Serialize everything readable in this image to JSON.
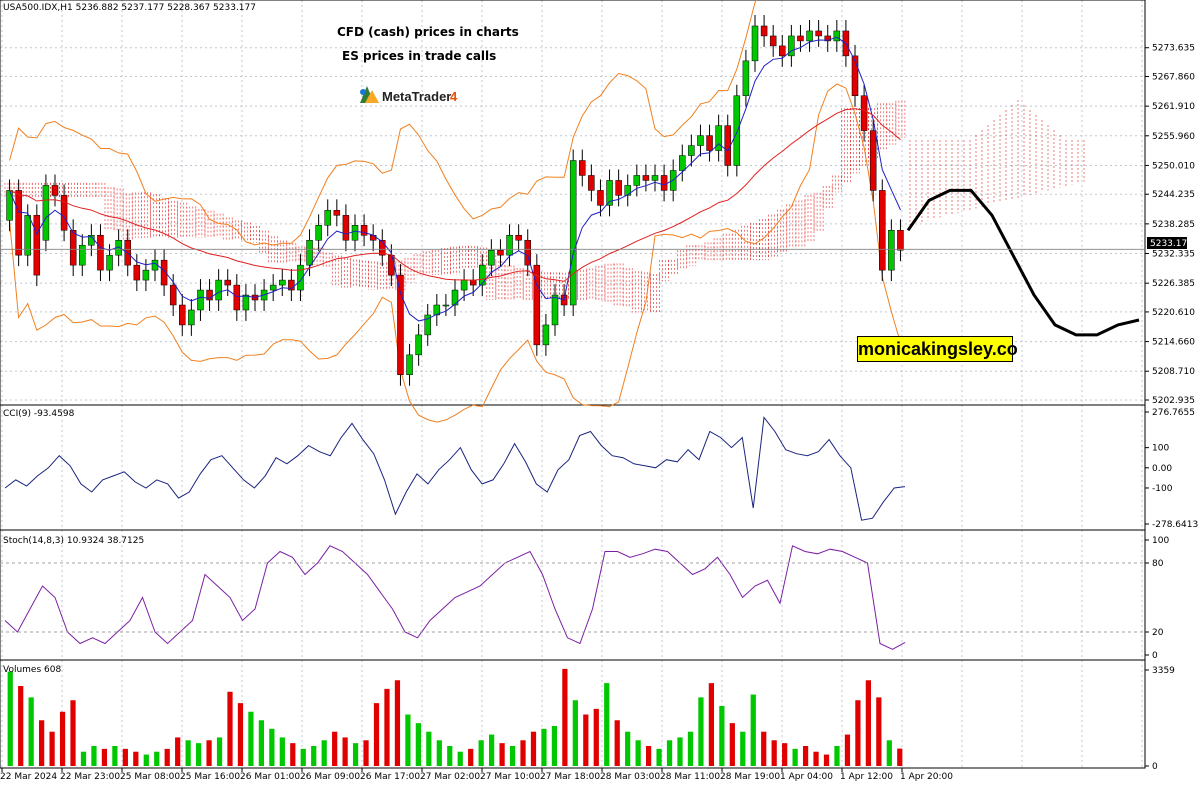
{
  "header": {
    "symbol_info": "USA500.IDX,H1  5236.882 5237.177 5228.367 5233.177",
    "note_line1": "CFD (cash) prices in charts",
    "note_line2": "ES prices in trade calls",
    "platform_name": "MetaTrader",
    "platform_version": "4"
  },
  "brand_box": {
    "text": "monicakingsley.co",
    "background": "#ffff00"
  },
  "colors": {
    "bull_candle": "#00c800",
    "bear_candle": "#e00000",
    "cloud": "#e00000",
    "bollinger": "#f08020",
    "ema_fast": "#2020c8",
    "ema_slow": "#e02020",
    "cci_line": "#1a237e",
    "stoch_line": "#7b1fa2",
    "projection": "#000000",
    "grid": "#c0c8d0"
  },
  "chart_data": [
    {
      "type": "candlestick",
      "pane": "price",
      "title": "USA500.IDX,H1",
      "y_ticks": [
        "5273.635",
        "5267.860",
        "5261.910",
        "5255.960",
        "5250.010",
        "5244.235",
        "5238.285",
        "5232.335",
        "5226.385",
        "5220.610",
        "5214.660",
        "5208.710",
        "5202.935"
      ],
      "ylim": [
        5202.935,
        5279.6
      ],
      "current_price": "5233.177",
      "x_labels": [
        "22 Mar 2024",
        "22 Mar 23:00",
        "25 Mar 08:00",
        "25 Mar 16:00",
        "26 Mar 01:00",
        "26 Mar 09:00",
        "26 Mar 17:00",
        "27 Mar 02:00",
        "27 Mar 10:00",
        "27 Mar 18:00",
        "28 Mar 03:00",
        "28 Mar 11:00",
        "28 Mar 19:00",
        "1 Apr 04:00",
        "1 Apr 12:00",
        "1 Apr 20:00"
      ],
      "candles_close": [
        5245,
        5232,
        5240,
        5228,
        5246,
        5244,
        5237,
        5230,
        5234,
        5236,
        5229,
        5232,
        5235,
        5230,
        5227,
        5229,
        5231,
        5226,
        5222,
        5218,
        5221,
        5225,
        5223,
        5227,
        5226,
        5221,
        5224,
        5223,
        5225,
        5226,
        5227,
        5225,
        5230,
        5235,
        5238,
        5241,
        5240,
        5235,
        5238,
        5236,
        5235,
        5232,
        5228,
        5208,
        5212,
        5216,
        5220,
        5222,
        5222,
        5225,
        5227,
        5226,
        5230,
        5233,
        5232,
        5236,
        5235,
        5230,
        5214,
        5218,
        5224,
        5222,
        5251,
        5248,
        5245,
        5242,
        5247,
        5244,
        5246,
        5248,
        5247,
        5248,
        5245,
        5249,
        5252,
        5254,
        5256,
        5253,
        5258,
        5250,
        5264,
        5271,
        5278,
        5276,
        5274,
        5272,
        5276,
        5275,
        5277,
        5276,
        5275,
        5277,
        5272,
        5264,
        5257,
        5245,
        5229,
        5237,
        5233
      ],
      "candles_open": [
        5239,
        5245,
        5232,
        5240,
        5235,
        5246,
        5244,
        5237,
        5230,
        5234,
        5236,
        5229,
        5232,
        5235,
        5230,
        5227,
        5229,
        5231,
        5226,
        5222,
        5218,
        5221,
        5225,
        5223,
        5227,
        5226,
        5221,
        5224,
        5223,
        5225,
        5226,
        5227,
        5225,
        5230,
        5235,
        5238,
        5241,
        5240,
        5235,
        5238,
        5236,
        5235,
        5232,
        5228,
        5208,
        5212,
        5216,
        5220,
        5222,
        5222,
        5225,
        5227,
        5226,
        5230,
        5233,
        5232,
        5236,
        5235,
        5230,
        5214,
        5218,
        5224,
        5222,
        5251,
        5248,
        5245,
        5242,
        5247,
        5244,
        5246,
        5248,
        5247,
        5248,
        5245,
        5249,
        5252,
        5254,
        5256,
        5253,
        5258,
        5250,
        5264,
        5271,
        5278,
        5276,
        5274,
        5272,
        5276,
        5275,
        5277,
        5276,
        5275,
        5277,
        5272,
        5264,
        5257,
        5245,
        5229,
        5237
      ],
      "projection": [
        [
          5237,
          0
        ],
        [
          5243,
          1
        ],
        [
          5245,
          2
        ],
        [
          5245,
          3
        ],
        [
          5240,
          4
        ],
        [
          5232,
          5
        ],
        [
          5224,
          6
        ],
        [
          5218,
          7
        ],
        [
          5216,
          8
        ],
        [
          5216,
          9
        ],
        [
          5218,
          10
        ],
        [
          5219,
          11
        ]
      ]
    },
    {
      "type": "line",
      "pane": "cci",
      "title": "CCI(9) -93.4598",
      "y_ticks": [
        "276.7655",
        "100",
        "0.00",
        "-100",
        "-278.6413"
      ],
      "ylim": [
        -278.6413,
        276.7655
      ],
      "values": [
        -100,
        -60,
        -90,
        -40,
        0,
        60,
        10,
        -80,
        -120,
        -60,
        -40,
        -20,
        -70,
        -100,
        -60,
        -80,
        -150,
        -120,
        -30,
        40,
        60,
        0,
        -60,
        -100,
        -40,
        50,
        20,
        60,
        110,
        80,
        60,
        150,
        220,
        140,
        70,
        -60,
        -230,
        -120,
        -30,
        -80,
        -10,
        40,
        100,
        -10,
        -80,
        -60,
        20,
        120,
        30,
        -80,
        -120,
        -10,
        40,
        160,
        180,
        110,
        60,
        50,
        20,
        10,
        0,
        40,
        30,
        90,
        40,
        180,
        150,
        100,
        150,
        -200,
        250,
        180,
        90,
        70,
        60,
        80,
        140,
        60,
        0,
        -260,
        -250,
        -170,
        -100,
        -93
      ]
    },
    {
      "type": "line",
      "pane": "stoch",
      "title": "Stoch(14,8,3) 10.9324 38.7125",
      "y_ticks": [
        "100",
        "80",
        "20",
        "0"
      ],
      "ylim": [
        0,
        100
      ],
      "values": [
        30,
        20,
        40,
        60,
        50,
        20,
        10,
        15,
        10,
        20,
        30,
        50,
        20,
        10,
        20,
        30,
        70,
        60,
        50,
        30,
        40,
        80,
        90,
        85,
        70,
        80,
        95,
        90,
        80,
        70,
        55,
        40,
        20,
        15,
        30,
        40,
        50,
        55,
        60,
        70,
        80,
        85,
        90,
        70,
        40,
        15,
        10,
        40,
        90,
        90,
        85,
        88,
        92,
        90,
        80,
        70,
        75,
        85,
        70,
        50,
        60,
        65,
        45,
        95,
        90,
        88,
        92,
        90,
        85,
        80,
        10,
        5,
        11
      ]
    },
    {
      "type": "bar",
      "pane": "volumes",
      "title": "Volumes 608",
      "y_ticks": [
        "3359",
        "0"
      ],
      "ylim": [
        0,
        3359
      ],
      "values": [
        3300,
        2800,
        2400,
        1600,
        1200,
        1900,
        2300,
        500,
        700,
        600,
        700,
        600,
        500,
        400,
        500,
        600,
        1000,
        900,
        800,
        900,
        1000,
        2600,
        2200,
        1900,
        1600,
        1300,
        1000,
        800,
        600,
        700,
        900,
        1200,
        1000,
        800,
        900,
        2200,
        2700,
        3000,
        1800,
        1500,
        1200,
        900,
        700,
        500,
        600,
        900,
        1100,
        800,
        700,
        900,
        1200,
        1300,
        1400,
        3400,
        2300,
        1800,
        2000,
        2900,
        1600,
        1200,
        900,
        700,
        600,
        900,
        1000,
        1200,
        2400,
        2900,
        2100,
        1500,
        1200,
        2500,
        1200,
        900,
        800,
        600,
        700,
        500,
        400,
        700,
        1100,
        2300,
        3000,
        2400,
        900,
        608
      ],
      "colors_pattern": "alternating green/red by candle direction"
    }
  ]
}
